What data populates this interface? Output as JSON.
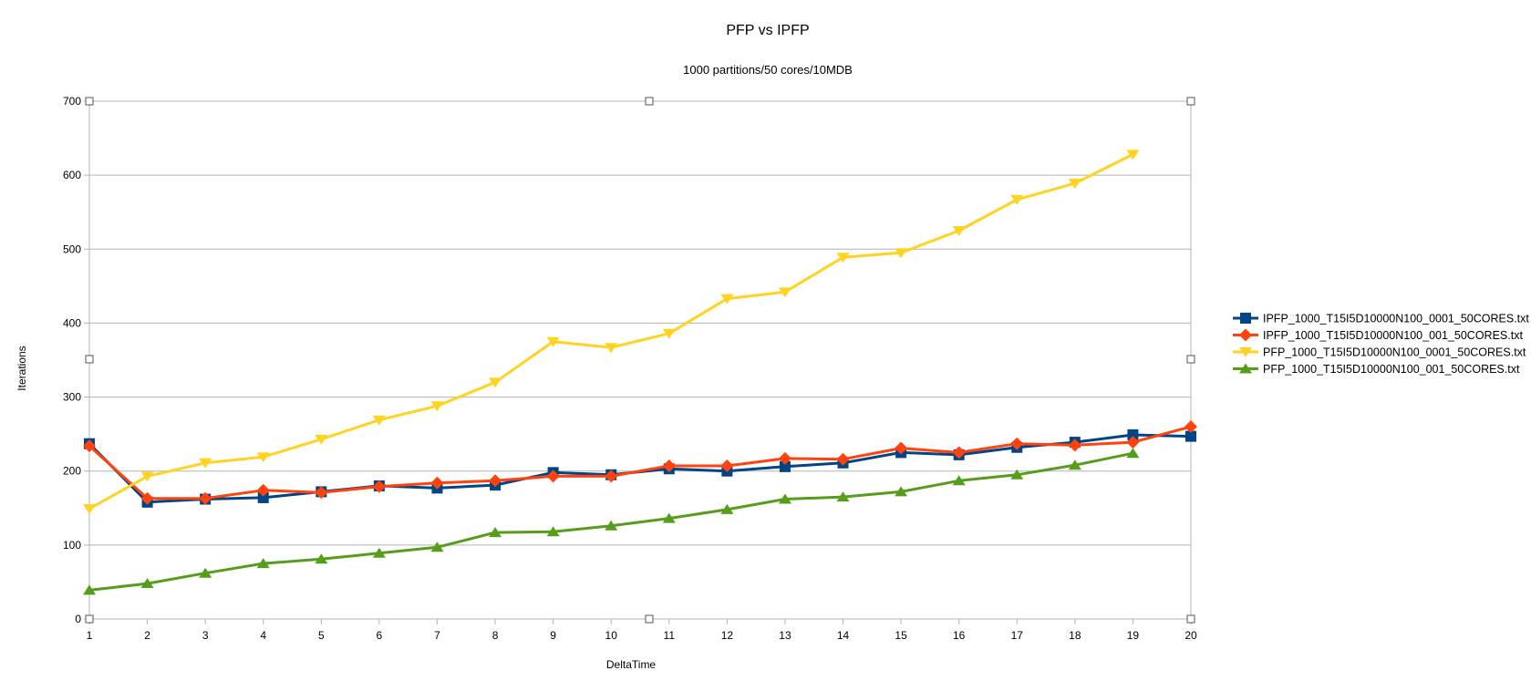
{
  "chart_data": {
    "type": "line",
    "title": "PFP vs IPFP",
    "subtitle": "1000 partitions/50 cores/10MDB",
    "xlabel": "DeltaTime",
    "ylabel": "Iterations",
    "x": [
      1,
      2,
      3,
      4,
      5,
      6,
      7,
      8,
      9,
      10,
      11,
      12,
      13,
      14,
      15,
      16,
      17,
      18,
      19,
      20
    ],
    "xlim": [
      1,
      20
    ],
    "ylim": [
      0,
      700
    ],
    "yticks": [
      0,
      100,
      200,
      300,
      400,
      500,
      600,
      700
    ],
    "grid": "horizontal",
    "legend_position": "right",
    "series": [
      {
        "name": "IPFP_1000_T15I5D10000N100_0001_50CORES.txt",
        "color": "#004586",
        "marker": "square",
        "values": [
          237,
          158,
          162,
          164,
          172,
          180,
          177,
          181,
          198,
          195,
          203,
          200,
          206,
          211,
          225,
          222,
          232,
          239,
          249,
          247
        ]
      },
      {
        "name": "IPFP_1000_T15I5D10000N100_001_50CORES.txt",
        "color": "#ff420e",
        "marker": "diamond",
        "values": [
          234,
          163,
          163,
          174,
          171,
          179,
          184,
          187,
          193,
          193,
          207,
          207,
          217,
          216,
          231,
          225,
          237,
          235,
          239,
          260
        ]
      },
      {
        "name": "PFP_1000_T15I5D10000N100_0001_50CORES.txt",
        "color": "#ffd320",
        "marker": "triangle-down",
        "values": [
          149,
          193,
          211,
          219,
          243,
          269,
          288,
          320,
          375,
          367,
          386,
          433,
          442,
          489,
          495,
          525,
          567,
          589,
          628,
          null
        ]
      },
      {
        "name": "PFP_1000_T15I5D10000N100_001_50CORES.txt",
        "color": "#579d1c",
        "marker": "triangle-up",
        "values": [
          39,
          48,
          62,
          75,
          81,
          89,
          97,
          117,
          118,
          126,
          136,
          148,
          162,
          165,
          172,
          187,
          195,
          208,
          224,
          null
        ]
      }
    ]
  }
}
